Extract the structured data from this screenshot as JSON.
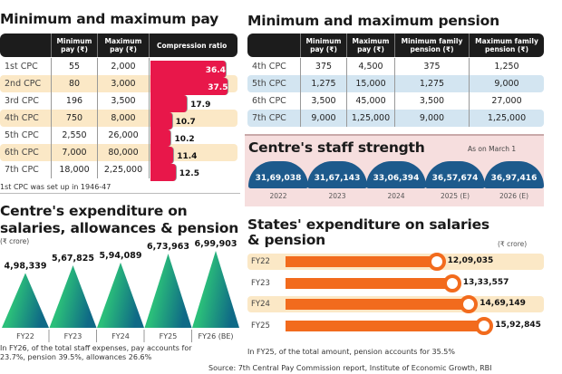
{
  "pay": {
    "title": "Minimum and maximum pay",
    "headers": [
      "",
      "Minimum pay (₹)",
      "Maximum pay (₹)",
      "Compression ratio"
    ],
    "rows": [
      [
        "1st CPC",
        "55",
        "2,000",
        "36.4"
      ],
      [
        "2nd CPC",
        "80",
        "3,000",
        "37.5"
      ],
      [
        "3rd CPC",
        "196",
        "3,500",
        "17.9"
      ],
      [
        "4th CPC",
        "750",
        "8,000",
        "10.7"
      ],
      [
        "5th CPC",
        "2,550",
        "26,000",
        "10.2"
      ],
      [
        "6th CPC",
        "7,000",
        "80,000",
        "11.4"
      ],
      [
        "7th CPC",
        "18,000",
        "2,25,000",
        "12.5"
      ]
    ],
    "note": "1st CPC was set up in 1946-47"
  },
  "pension": {
    "title": "Minimum and maximum pension",
    "headers": [
      "",
      "Minimum pay (₹)",
      "Maximum pay (₹)",
      "Minimum family pension (₹)",
      "Maximum family pension (₹)"
    ],
    "rows": [
      [
        "4th CPC",
        "375",
        "4,500",
        "375",
        "1,250"
      ],
      [
        "5th CPC",
        "1,275",
        "15,000",
        "1,275",
        "9,000"
      ],
      [
        "6th CPC",
        "3,500",
        "45,000",
        "3,500",
        "27,000"
      ],
      [
        "7th CPC",
        "9,000",
        "1,25,000",
        "9,000",
        "1,25,000"
      ]
    ]
  },
  "staff": {
    "title": "Centre's staff strength",
    "subtitle": "As on March 1",
    "items": [
      {
        "value": "31,69,038",
        "year": "2022"
      },
      {
        "value": "31,67,143",
        "year": "2023"
      },
      {
        "value": "33,06,394",
        "year": "2024"
      },
      {
        "value": "36,57,674",
        "year": "2025 (E)"
      },
      {
        "value": "36,97,416",
        "year": "2026 (E)"
      }
    ]
  },
  "centre": {
    "title1": "Centre's expenditure on",
    "title2": "salaries, allowances & pension",
    "unit": "(₹ crore)",
    "note1": "In FY26, of the total staff expenses, pay accounts for",
    "note2": "23.7%, pension 39.5%, allowances 26.6%"
  },
  "states": {
    "title1": "States' expenditure on salaries",
    "title2": "& pension",
    "unit": "(₹ crore)",
    "note": "In FY25, of the total amount, pension accounts for 35.5%"
  },
  "source": "Source: 7th Central Pay Commission report, Institute of Economic Growth, RBI",
  "colors": {
    "ratio_bar": "#e8174a",
    "staff": "#1d5a8c",
    "states_bar": "#f26b1d",
    "triangle_a": "#2bbf7a",
    "triangle_b": "#0f6a86"
  },
  "chart_data": [
    {
      "type": "bar",
      "title": "Compression ratio",
      "categories": [
        "1st CPC",
        "2nd CPC",
        "3rd CPC",
        "4th CPC",
        "5th CPC",
        "6th CPC",
        "7th CPC"
      ],
      "values": [
        36.4,
        37.5,
        17.9,
        10.7,
        10.2,
        11.4,
        12.5
      ]
    },
    {
      "type": "bar",
      "title": "Centre's expenditure on salaries, allowances & pension",
      "ylabel": "₹ crore",
      "categories": [
        "FY22",
        "FY23",
        "FY24",
        "FY25",
        "FY26 (BE)"
      ],
      "values": [
        498339,
        567825,
        594089,
        673963,
        699903
      ],
      "labels": [
        "4,98,339",
        "5,67,825",
        "5,94,089",
        "6,73,963",
        "6,99,903"
      ]
    },
    {
      "type": "bar",
      "title": "States' expenditure on salaries & pension",
      "xlabel": "₹ crore",
      "categories": [
        "FY22",
        "FY23",
        "FY24",
        "FY25"
      ],
      "values": [
        1209035,
        1333557,
        1469149,
        1592845
      ],
      "labels": [
        "12,09,035",
        "13,33,557",
        "14,69,149",
        "15,92,845"
      ]
    }
  ]
}
